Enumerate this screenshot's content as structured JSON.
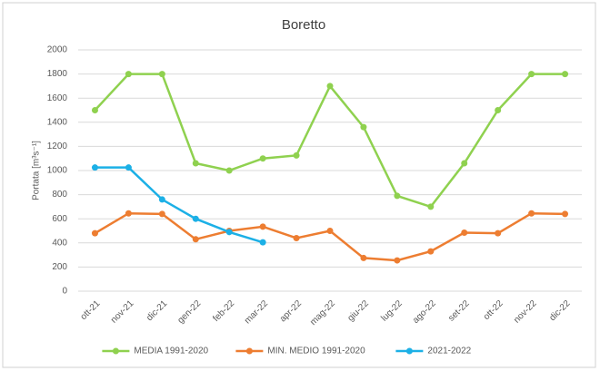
{
  "chart_data": {
    "type": "line",
    "title": "Boretto",
    "y_label": "Portata [m³s⁻¹]",
    "categories": [
      "ott-21",
      "nov-21",
      "dic-21",
      "gen-22",
      "feb-22",
      "mar-22",
      "apr-22",
      "mag-22",
      "giu-22",
      "lug-22",
      "ago-22",
      "set-22",
      "ott-22",
      "nov-22",
      "dic-22"
    ],
    "series": [
      {
        "name": "MEDIA 1991-2020",
        "color": "#8fd14f",
        "values": [
          1500,
          1800,
          1800,
          1060,
          1000,
          1100,
          1125,
          1700,
          1360,
          790,
          700,
          1060,
          1500,
          1800,
          1800
        ]
      },
      {
        "name": "MIN. MEDIO 1991-2020",
        "color": "#ed7d31",
        "values": [
          480,
          645,
          640,
          430,
          500,
          535,
          440,
          500,
          275,
          255,
          330,
          485,
          480,
          645,
          640
        ]
      },
      {
        "name": "2021-2022",
        "color": "#1cb0e6",
        "values": [
          1025,
          1025,
          760,
          600,
          490,
          405,
          null,
          null,
          null,
          null,
          null,
          null,
          null,
          null,
          null
        ]
      }
    ],
    "ylim": [
      0,
      2000
    ],
    "yticks": [
      0,
      200,
      400,
      600,
      800,
      1000,
      1200,
      1400,
      1600,
      1800,
      2000
    ],
    "grid": true,
    "legend": "bottom"
  }
}
